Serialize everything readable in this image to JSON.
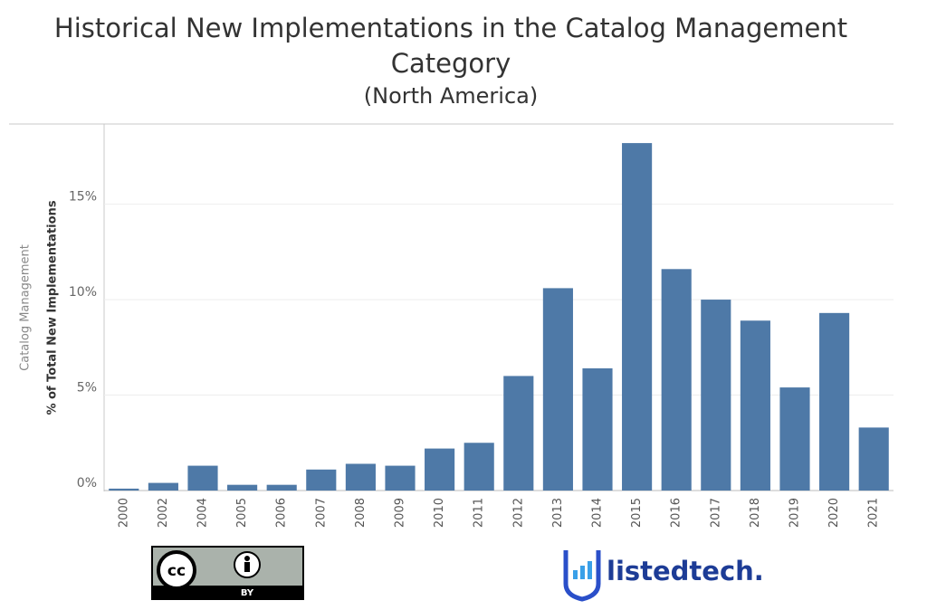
{
  "chart_data": {
    "type": "bar",
    "title": "Historical New Implementations in the Catalog Management Category",
    "subtitle": "(North America)",
    "y_label": "% of Total New Implementations",
    "y_group_label": "Catalog Management",
    "categories": [
      "2000",
      "2002",
      "2004",
      "2005",
      "2006",
      "2007",
      "2008",
      "2009",
      "2010",
      "2011",
      "2012",
      "2013",
      "2014",
      "2015",
      "2016",
      "2017",
      "2018",
      "2019",
      "2020",
      "2021"
    ],
    "values": [
      0.1,
      0.4,
      1.3,
      0.3,
      0.3,
      1.1,
      1.4,
      1.3,
      2.2,
      2.5,
      6.0,
      10.6,
      6.4,
      18.2,
      11.6,
      10.0,
      8.9,
      5.4,
      9.3,
      3.3
    ],
    "color": "#4e79a7",
    "ylim": [
      0,
      19.2
    ],
    "yticks": [
      {
        "value": 0,
        "label": "0%"
      },
      {
        "value": 5,
        "label": "5%"
      },
      {
        "value": 10,
        "label": "10%"
      },
      {
        "value": 15,
        "label": "15%"
      }
    ],
    "grid": true
  },
  "logos": {
    "license_icon": "cc",
    "license": "BY",
    "brand": "listedtech."
  }
}
